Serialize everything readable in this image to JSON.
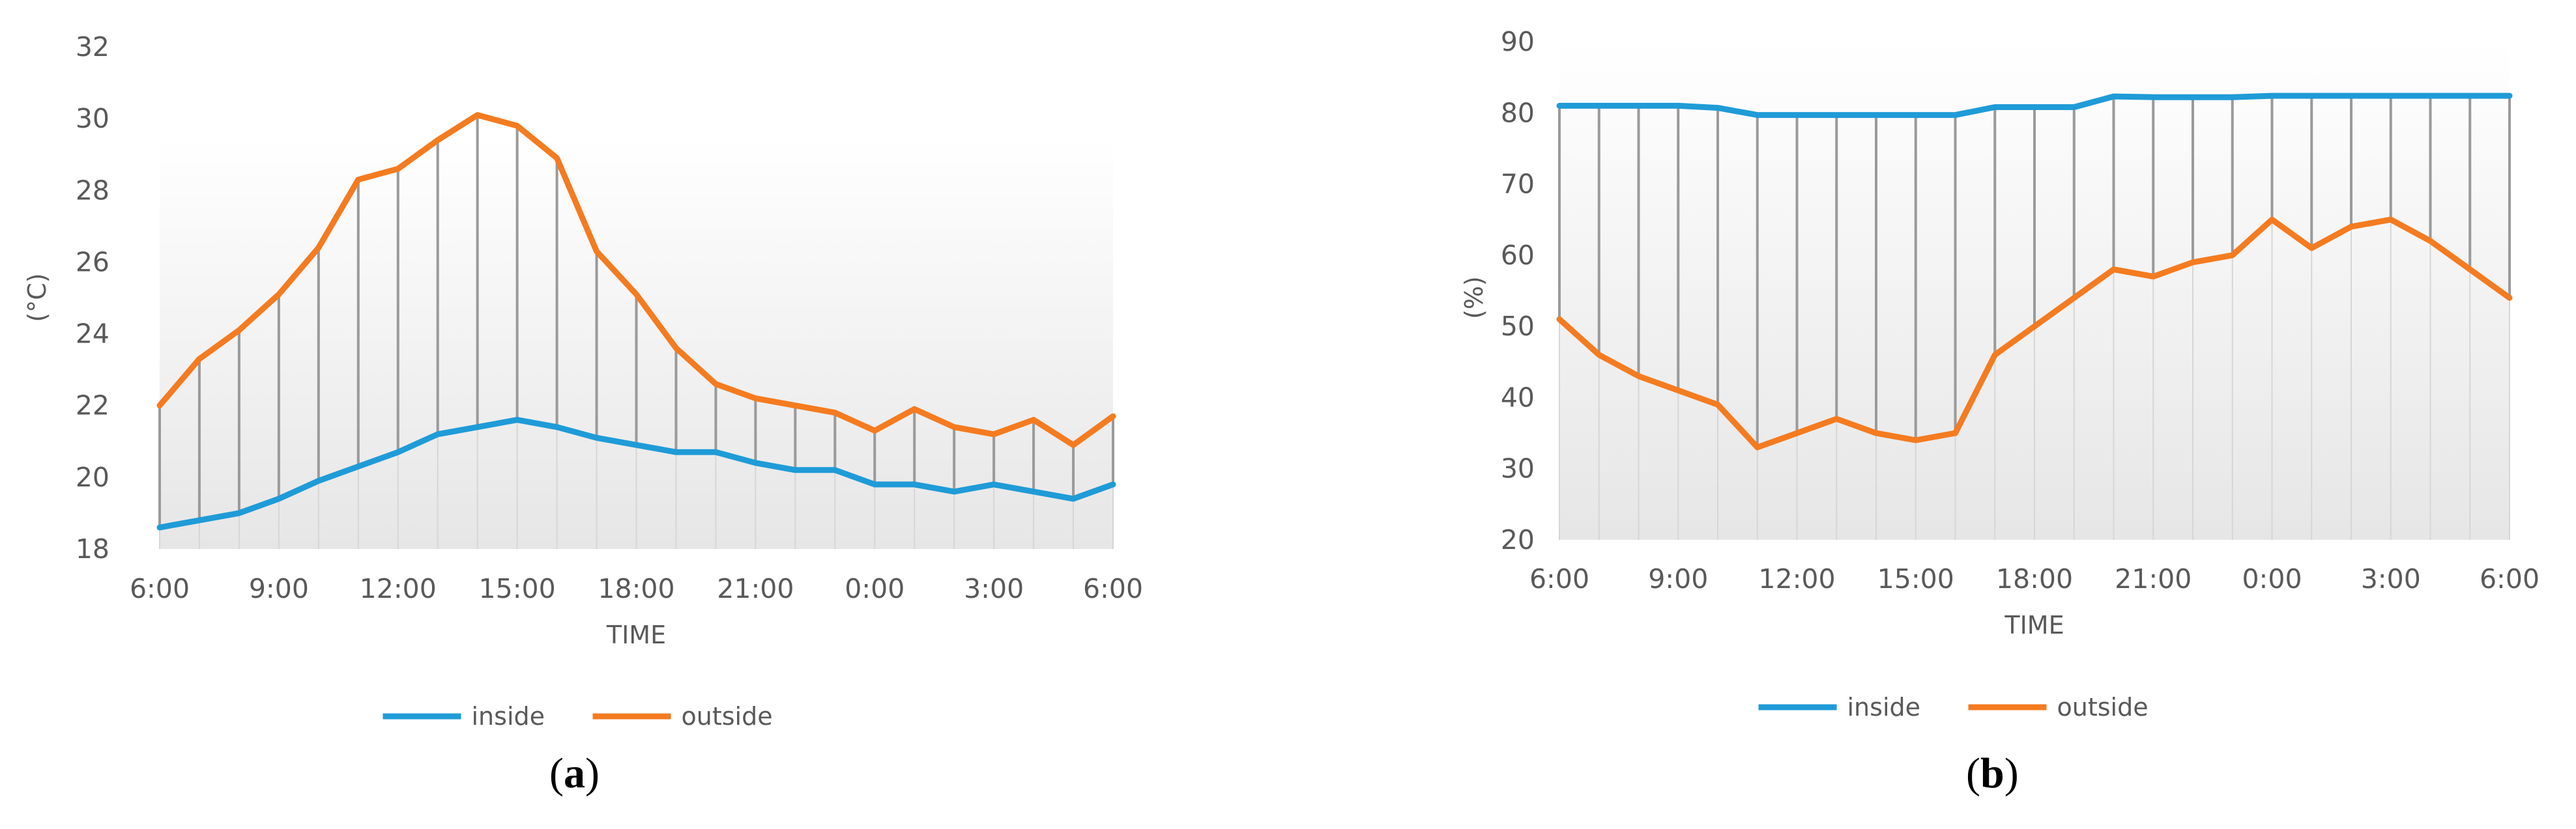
{
  "panels": [
    {
      "caption_open": "(",
      "caption_letter": "a",
      "caption_close": ")",
      "chart_data": {
        "type": "line",
        "title": "",
        "xlabel": "TIME",
        "ylabel": "(°C)",
        "categories": [
          "6:00",
          "7:00",
          "8:00",
          "9:00",
          "10:00",
          "11:00",
          "12:00",
          "13:00",
          "14:00",
          "15:00",
          "16:00",
          "17:00",
          "18:00",
          "19:00",
          "20:00",
          "21:00",
          "22:00",
          "23:00",
          "0:00",
          "1:00",
          "2:00",
          "3:00",
          "4:00",
          "5:00",
          "6:00"
        ],
        "xtick_labels": [
          "6:00",
          "9:00",
          "12:00",
          "15:00",
          "18:00",
          "21:00",
          "0:00",
          "3:00",
          "6:00"
        ],
        "ylim": [
          18,
          32
        ],
        "yticks": [
          18,
          20,
          22,
          24,
          26,
          28,
          30,
          32
        ],
        "drop_lines": true,
        "legend_position": "bottom",
        "series": [
          {
            "name": "inside",
            "color": "#1f9bd7",
            "values": [
              18.6,
              18.8,
              19.0,
              19.4,
              19.9,
              20.3,
              20.7,
              21.2,
              21.4,
              21.6,
              21.4,
              21.1,
              20.9,
              20.7,
              20.7,
              20.4,
              20.2,
              20.2,
              19.8,
              19.8,
              19.6,
              19.8,
              19.6,
              19.4,
              19.8
            ]
          },
          {
            "name": "outside",
            "color": "#f47b20",
            "values": [
              22.0,
              23.3,
              24.1,
              25.1,
              26.4,
              28.3,
              28.6,
              29.4,
              30.1,
              29.8,
              28.9,
              26.3,
              25.1,
              23.6,
              22.6,
              22.2,
              22.0,
              21.8,
              21.3,
              21.9,
              21.4,
              21.2,
              21.6,
              20.9,
              21.7
            ]
          }
        ]
      }
    },
    {
      "caption_open": "(",
      "caption_letter": "b",
      "caption_close": ")",
      "chart_data": {
        "type": "line",
        "title": "",
        "xlabel": "TIME",
        "ylabel": "(%)",
        "categories": [
          "6:00",
          "7:00",
          "8:00",
          "9:00",
          "10:00",
          "11:00",
          "12:00",
          "13:00",
          "14:00",
          "15:00",
          "16:00",
          "17:00",
          "18:00",
          "19:00",
          "20:00",
          "21:00",
          "22:00",
          "23:00",
          "0:00",
          "1:00",
          "2:00",
          "3:00",
          "4:00",
          "5:00",
          "6:00"
        ],
        "xtick_labels": [
          "6:00",
          "9:00",
          "12:00",
          "15:00",
          "18:00",
          "21:00",
          "0:00",
          "3:00",
          "6:00"
        ],
        "ylim": [
          20,
          90
        ],
        "yticks": [
          20,
          30,
          40,
          50,
          60,
          70,
          80,
          90
        ],
        "drop_lines": true,
        "legend_position": "bottom",
        "series": [
          {
            "name": "inside",
            "color": "#1f9bd7",
            "values": [
              81,
              81,
              81,
              81,
              80.7,
              79.7,
              79.7,
              79.7,
              79.7,
              79.7,
              79.7,
              80.8,
              80.8,
              80.8,
              82.3,
              82.2,
              82.2,
              82.2,
              82.4,
              82.4,
              82.4,
              82.4,
              82.4,
              82.4,
              82.4
            ]
          },
          {
            "name": "outside",
            "color": "#f47b20",
            "values": [
              51,
              46,
              43,
              41,
              39,
              33,
              35,
              37,
              35,
              34,
              35,
              46,
              50,
              54,
              58,
              57,
              59,
              60,
              65,
              61,
              64,
              65,
              62,
              58,
              54
            ]
          }
        ]
      }
    }
  ]
}
